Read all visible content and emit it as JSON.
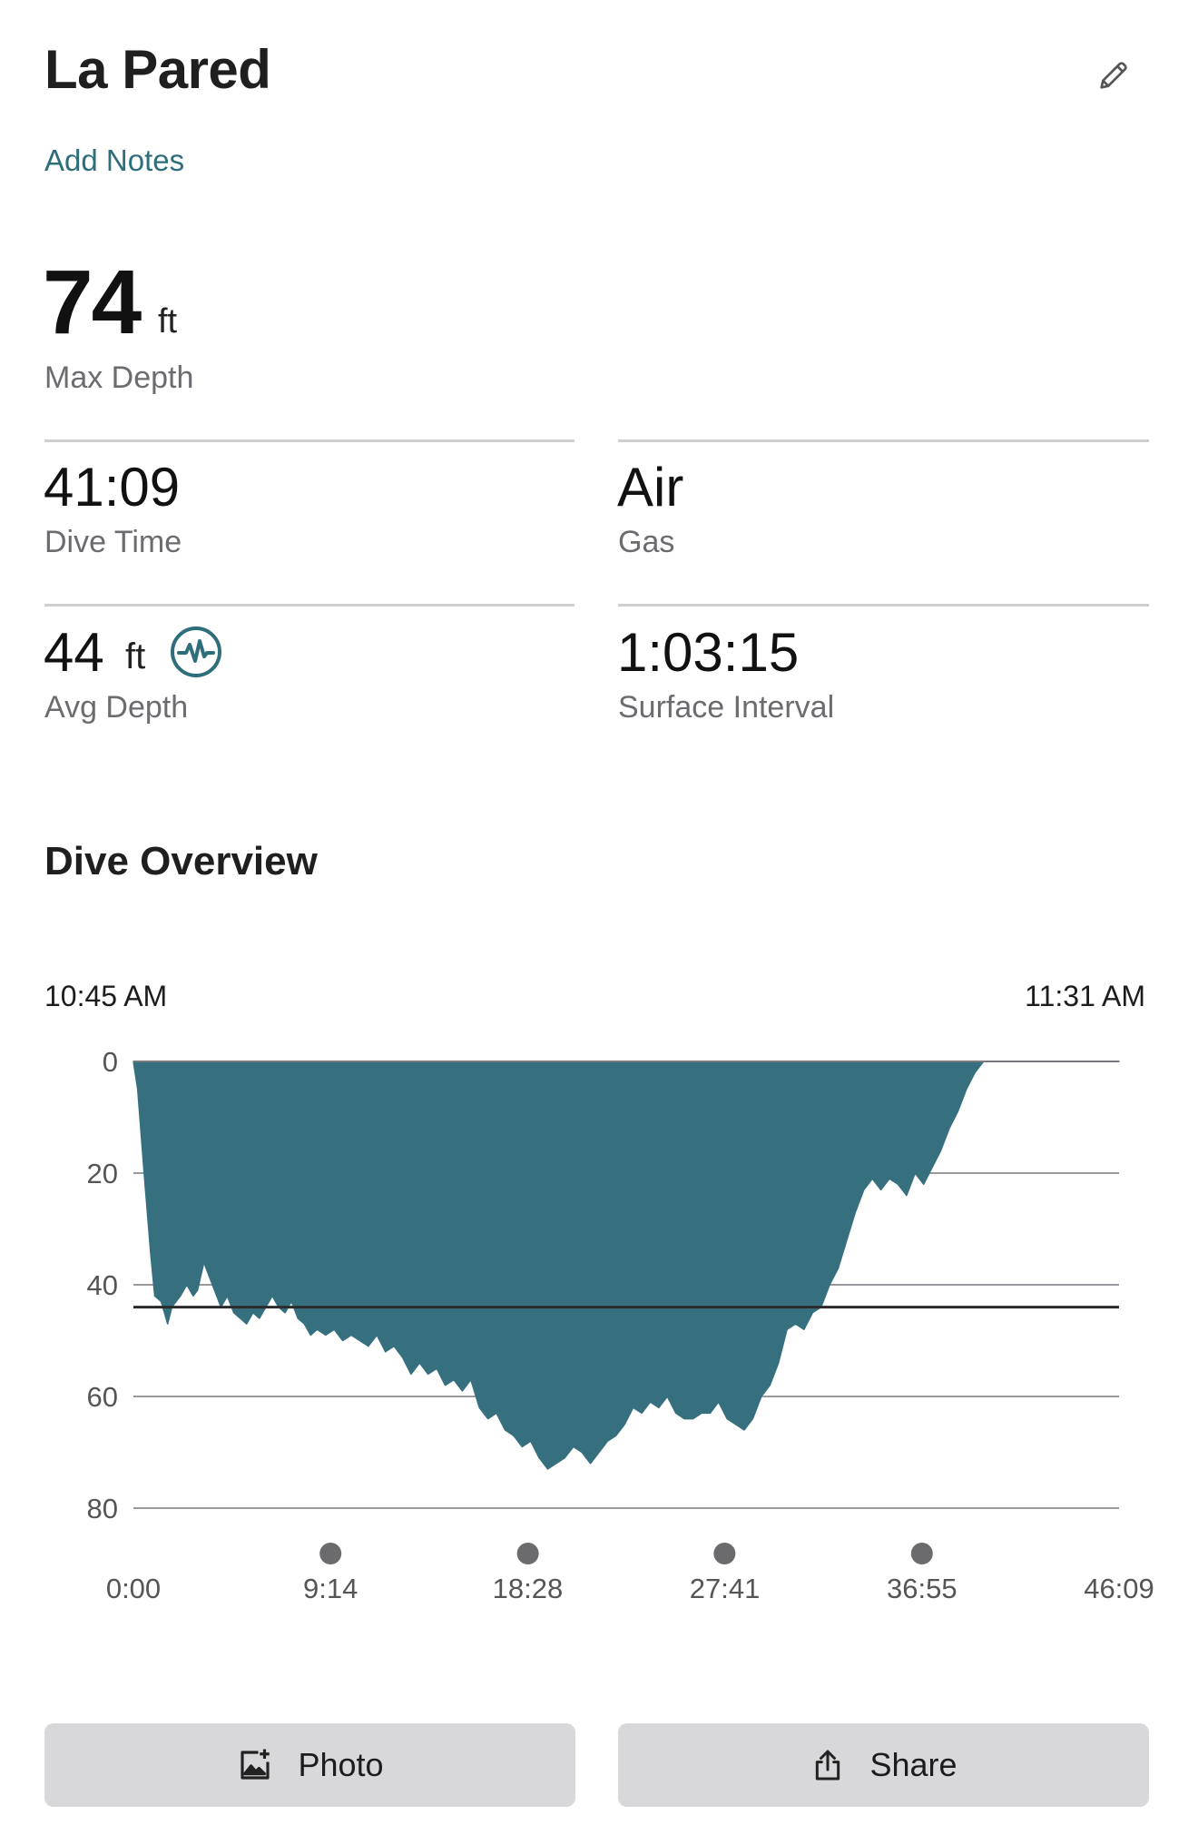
{
  "header": {
    "title": "La Pared",
    "edit_icon": "pencil-icon"
  },
  "notes_link": "Add Notes",
  "max_depth": {
    "value": "74",
    "unit": "ft",
    "label": "Max Depth"
  },
  "stats": {
    "dive_time": {
      "value": "41:09",
      "label": "Dive Time"
    },
    "gas": {
      "value": "Air",
      "label": "Gas"
    },
    "avg_depth": {
      "value": "44",
      "unit": "ft",
      "label": "Avg Depth",
      "icon": "waveform-icon"
    },
    "surface_interval": {
      "value": "1:03:15",
      "label": "Surface Interval"
    }
  },
  "overview": {
    "title": "Dive Overview",
    "start_time": "10:45 AM",
    "end_time": "11:31 AM"
  },
  "chart_data": {
    "type": "area",
    "y_ticks": [
      "0",
      "20",
      "40",
      "60",
      "80"
    ],
    "x_ticks": [
      "0:00",
      "9:14",
      "18:28",
      "27:41",
      "36:55",
      "46:09"
    ],
    "ylim": [
      0,
      80
    ],
    "y_inverted": true,
    "xlim_minutes": [
      0,
      46.15
    ],
    "avg_depth_line": 44,
    "marker_minutes": [
      9.23,
      18.47,
      27.68,
      36.92
    ],
    "color": "#36707f",
    "series": [
      {
        "x": [
          0,
          0.2,
          0.5,
          0.8,
          1.0,
          1.3,
          1.6,
          1.8,
          2.0,
          2.2,
          2.5,
          2.8,
          3.0,
          3.3,
          3.6,
          3.9,
          4.1,
          4.4,
          4.7,
          5.0,
          5.3,
          5.6,
          5.9,
          6.2,
          6.5,
          6.8,
          7.1,
          7.4,
          7.7,
          8.0,
          8.3,
          8.6,
          9.0,
          9.4,
          9.8,
          10.2,
          10.6,
          11.0,
          11.4,
          11.8,
          12.2,
          12.6,
          13.0,
          13.4,
          13.8,
          14.2,
          14.6,
          15.0,
          15.4,
          15.8,
          16.2,
          16.6,
          17.0,
          17.4,
          17.8,
          18.2,
          18.6,
          19.0,
          19.4,
          19.8,
          20.2,
          20.6,
          21.0,
          21.4,
          21.8,
          22.2,
          22.6,
          23.0,
          23.4,
          23.8,
          24.2,
          24.6,
          25.0,
          25.4,
          25.8,
          26.2,
          26.6,
          27.0,
          27.4,
          27.8,
          28.2,
          28.6,
          29.0,
          29.4,
          29.8,
          30.2,
          30.6,
          31.0,
          31.4,
          31.8,
          32.2,
          32.6,
          33.0,
          33.4,
          33.8,
          34.2,
          34.6,
          35.0,
          35.4,
          35.8,
          36.2,
          36.6,
          37.0,
          37.4,
          37.8,
          38.2,
          38.6,
          39.0,
          39.4,
          39.8,
          40.2,
          40.6,
          40.9,
          41.1,
          41.2,
          46.15
        ],
        "y": [
          0,
          5,
          20,
          34,
          42,
          43,
          47,
          44,
          43,
          42,
          40,
          42,
          41,
          36,
          39,
          42,
          44,
          42,
          45,
          46,
          47,
          45,
          46,
          44,
          42,
          44,
          45,
          43,
          46,
          47,
          49,
          48,
          49,
          48,
          50,
          49,
          50,
          51,
          49,
          52,
          51,
          53,
          56,
          54,
          56,
          55,
          58,
          57,
          59,
          57,
          62,
          64,
          63,
          66,
          67,
          69,
          68,
          71,
          73,
          72,
          71,
          69,
          70,
          72,
          70,
          68,
          67,
          65,
          62,
          63,
          61,
          62,
          60,
          63,
          64,
          64,
          63,
          63,
          61,
          64,
          65,
          66,
          64,
          60,
          58,
          54,
          48,
          47,
          48,
          45,
          44,
          40,
          37,
          32,
          27,
          23,
          21,
          23,
          21,
          22,
          24,
          20,
          22,
          19,
          16,
          12,
          9,
          5,
          2,
          0,
          0,
          0,
          0,
          0,
          0,
          0
        ]
      }
    ]
  },
  "actions": {
    "photo": {
      "label": "Photo",
      "icon": "add-photo-icon"
    },
    "share": {
      "label": "Share",
      "icon": "share-icon"
    }
  }
}
